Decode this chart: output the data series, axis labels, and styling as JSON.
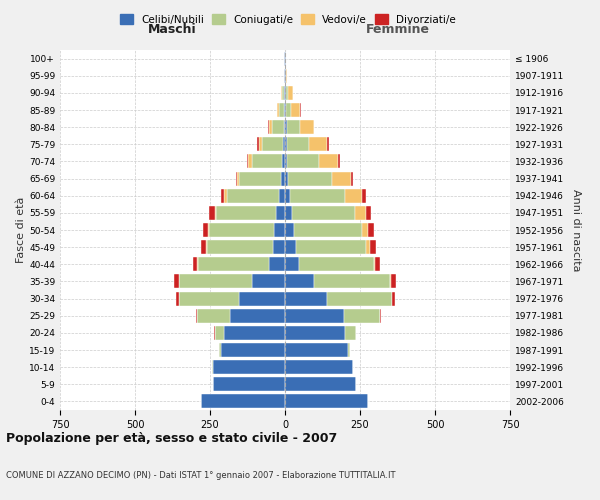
{
  "age_groups": [
    "0-4",
    "5-9",
    "10-14",
    "15-19",
    "20-24",
    "25-29",
    "30-34",
    "35-39",
    "40-44",
    "45-49",
    "50-54",
    "55-59",
    "60-64",
    "65-69",
    "70-74",
    "75-79",
    "80-84",
    "85-89",
    "90-94",
    "95-99",
    "100+"
  ],
  "birth_years": [
    "2002-2006",
    "1997-2001",
    "1992-1996",
    "1987-1991",
    "1982-1986",
    "1977-1981",
    "1972-1976",
    "1967-1971",
    "1962-1966",
    "1957-1961",
    "1952-1956",
    "1947-1951",
    "1942-1946",
    "1937-1941",
    "1932-1936",
    "1927-1931",
    "1922-1926",
    "1917-1921",
    "1912-1916",
    "1907-1911",
    "≤ 1906"
  ],
  "males": {
    "celibi": [
      280,
      240,
      240,
      215,
      205,
      185,
      155,
      110,
      55,
      40,
      38,
      30,
      20,
      12,
      10,
      8,
      4,
      3,
      2,
      2,
      2
    ],
    "coniugati": [
      0,
      0,
      2,
      5,
      30,
      110,
      200,
      245,
      235,
      220,
      215,
      200,
      175,
      140,
      100,
      70,
      40,
      18,
      8,
      2,
      0
    ],
    "vedovi": [
      0,
      0,
      0,
      0,
      0,
      0,
      0,
      0,
      2,
      2,
      3,
      5,
      8,
      8,
      12,
      10,
      10,
      5,
      2,
      0,
      0
    ],
    "divorziati": [
      0,
      0,
      0,
      0,
      2,
      3,
      8,
      15,
      15,
      18,
      18,
      18,
      12,
      5,
      5,
      5,
      2,
      0,
      0,
      0,
      0
    ]
  },
  "females": {
    "nubili": [
      275,
      235,
      225,
      210,
      200,
      195,
      140,
      95,
      45,
      35,
      30,
      22,
      15,
      10,
      8,
      5,
      5,
      3,
      2,
      2,
      2
    ],
    "coniugate": [
      0,
      0,
      2,
      5,
      35,
      120,
      215,
      255,
      250,
      235,
      225,
      210,
      185,
      145,
      105,
      75,
      45,
      18,
      8,
      2,
      0
    ],
    "vedove": [
      0,
      0,
      0,
      0,
      0,
      0,
      2,
      3,
      5,
      12,
      22,
      38,
      55,
      65,
      65,
      60,
      45,
      30,
      15,
      2,
      0
    ],
    "divorziate": [
      0,
      0,
      0,
      0,
      2,
      5,
      10,
      18,
      18,
      20,
      18,
      18,
      15,
      5,
      5,
      5,
      2,
      2,
      0,
      0,
      0
    ]
  },
  "colors": {
    "celibi": "#3a6eb5",
    "coniugati": "#b5cc8e",
    "vedovi": "#f5c26b",
    "divorziati": "#cc2222"
  },
  "xlim": 750,
  "xlabel_left": "Maschi",
  "xlabel_right": "Femmine",
  "ylabel_left": "Fasce di età",
  "ylabel_right": "Anni di nascita",
  "title": "Popolazione per età, sesso e stato civile - 2007",
  "subtitle": "COMUNE DI AZZANO DECIMO (PN) - Dati ISTAT 1° gennaio 2007 - Elaborazione TUTTITALIA.IT",
  "legend_labels": [
    "Celibi/Nubili",
    "Coniugati/e",
    "Vedovi/e",
    "Divorziati/e"
  ],
  "bg_color": "#f0f0f0",
  "plot_bg": "#ffffff"
}
